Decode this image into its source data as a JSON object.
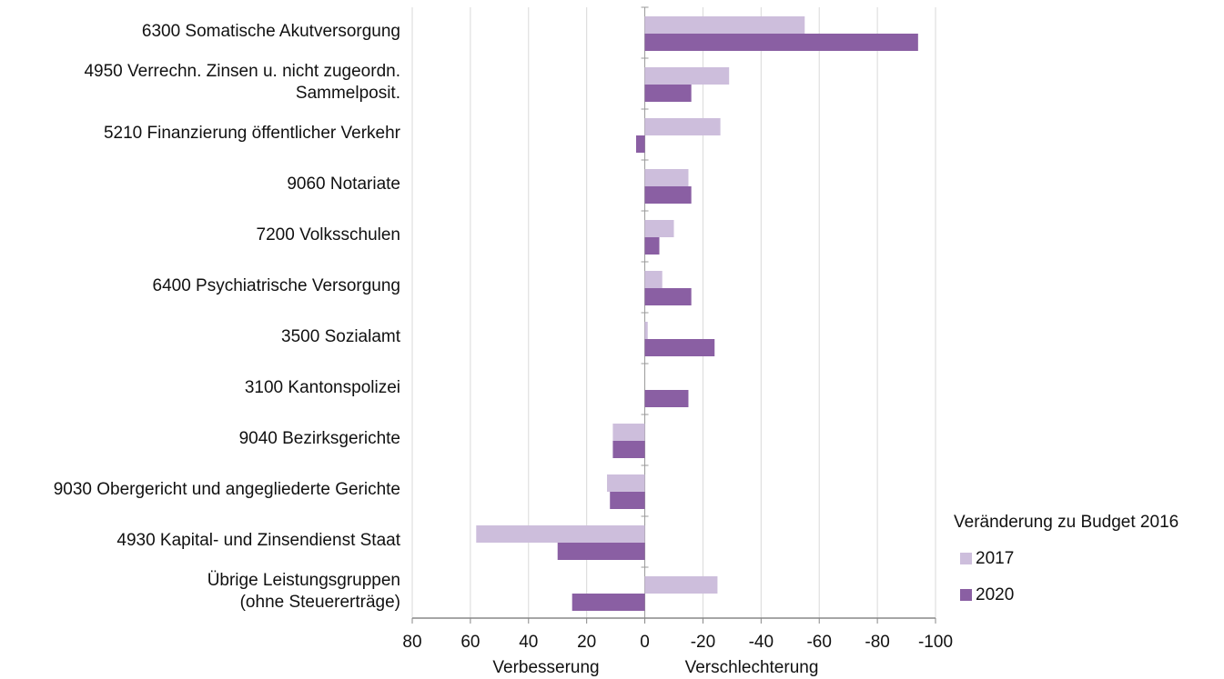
{
  "chart_data": {
    "type": "hbar",
    "categories": [
      "6300 Somatische Akutversorgung",
      "4950 Verrechn. Zinsen u. nicht zugeordn.\nSammelposit.",
      "5210 Finanzierung öffentlicher Verkehr",
      "9060 Notariate",
      "7200 Volksschulen",
      "6400 Psychiatrische Versorgung",
      "3500 Sozialamt",
      "3100 Kantonspolizei",
      "9040 Bezirksgerichte",
      "9030 Obergericht und angegliederte Gerichte",
      "4930 Kapital- und Zinsendienst Staat",
      "Übrige Leistungsgruppen\n(ohne Steuererträge)"
    ],
    "series": [
      {
        "name": "2017",
        "color": "#cdbedc",
        "values": [
          -55,
          -29,
          -26,
          -15,
          -10,
          -6,
          -1,
          0,
          11,
          13,
          58,
          -25
        ]
      },
      {
        "name": "2020",
        "color": "#8a5fa3",
        "values": [
          -94,
          -16,
          3,
          -16,
          -5,
          -16,
          -24,
          -15,
          11,
          12,
          30,
          25
        ]
      }
    ],
    "xlim": [
      80,
      -100
    ],
    "xticks": [
      80,
      60,
      40,
      20,
      0,
      -20,
      -40,
      -60,
      -80,
      -100
    ],
    "grid": true,
    "legend_title": "Veränderung zu Budget 2016",
    "legend": "right",
    "annotations": [
      "Verbesserung",
      "Verschlechterung"
    ]
  }
}
